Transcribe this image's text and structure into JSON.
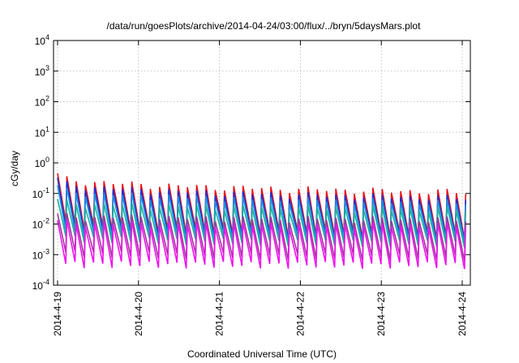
{
  "chart_data": {
    "type": "line",
    "title": "/data/run/goesPlots/archive/2014-04-24/03:00/flux/../bryn/5daysMars.plot",
    "xlabel": "Coordinated Universal Time (UTC)",
    "ylabel": "cGy/day",
    "y_scale": "log",
    "ylim": [
      0.0001,
      10000
    ],
    "y_ticks": [
      {
        "value": 0.0001,
        "base": "10",
        "exp": "-4"
      },
      {
        "value": 0.001,
        "base": "10",
        "exp": "-3"
      },
      {
        "value": 0.01,
        "base": "10",
        "exp": "-2"
      },
      {
        "value": 0.1,
        "base": "10",
        "exp": "-1"
      },
      {
        "value": 1,
        "base": "10",
        "exp": "0"
      },
      {
        "value": 10,
        "base": "10",
        "exp": "1"
      },
      {
        "value": 100,
        "base": "10",
        "exp": "2"
      },
      {
        "value": 1000,
        "base": "10",
        "exp": "3"
      },
      {
        "value": 10000,
        "base": "10",
        "exp": "4"
      }
    ],
    "x_axis": "time",
    "xlim_days": [
      -0.05,
      5.1
    ],
    "x_ticks": [
      {
        "day": 0,
        "label": "2014-4-19"
      },
      {
        "day": 1,
        "label": "2014-4-20"
      },
      {
        "day": 2,
        "label": "2014-4-21"
      },
      {
        "day": 3,
        "label": "2014-4-22"
      },
      {
        "day": 4,
        "label": "2014-4-23"
      },
      {
        "day": 5,
        "label": "2014-4-24"
      }
    ],
    "grid": true,
    "legend": "none",
    "cycle_hours": 2.75,
    "series": [
      {
        "color": "#e8141d",
        "peak_start": 0.42,
        "peak_end": 0.11,
        "trough_start": 0.012,
        "trough_end": 0.004
      },
      {
        "color": "#1f2fd6",
        "peak_start": 0.3,
        "peak_end": 0.07,
        "trough_start": 0.008,
        "trough_end": 0.0035
      },
      {
        "color": "#1a8fe3",
        "peak_start": 0.17,
        "peak_end": 0.05,
        "trough_start": 0.006,
        "trough_end": 0.003
      },
      {
        "color": "#19b3a0",
        "peak_start": 0.06,
        "peak_end": 0.03,
        "trough_start": 0.004,
        "trough_end": 0.0022
      },
      {
        "color": "#a0369a",
        "peak_start": 0.02,
        "peak_end": 0.014,
        "trough_start": 0.0012,
        "trough_end": 0.0008
      },
      {
        "color": "#ee11ee",
        "peak_start": 0.012,
        "peak_end": 0.009,
        "trough_start": 0.0005,
        "trough_end": 0.00045
      }
    ]
  }
}
